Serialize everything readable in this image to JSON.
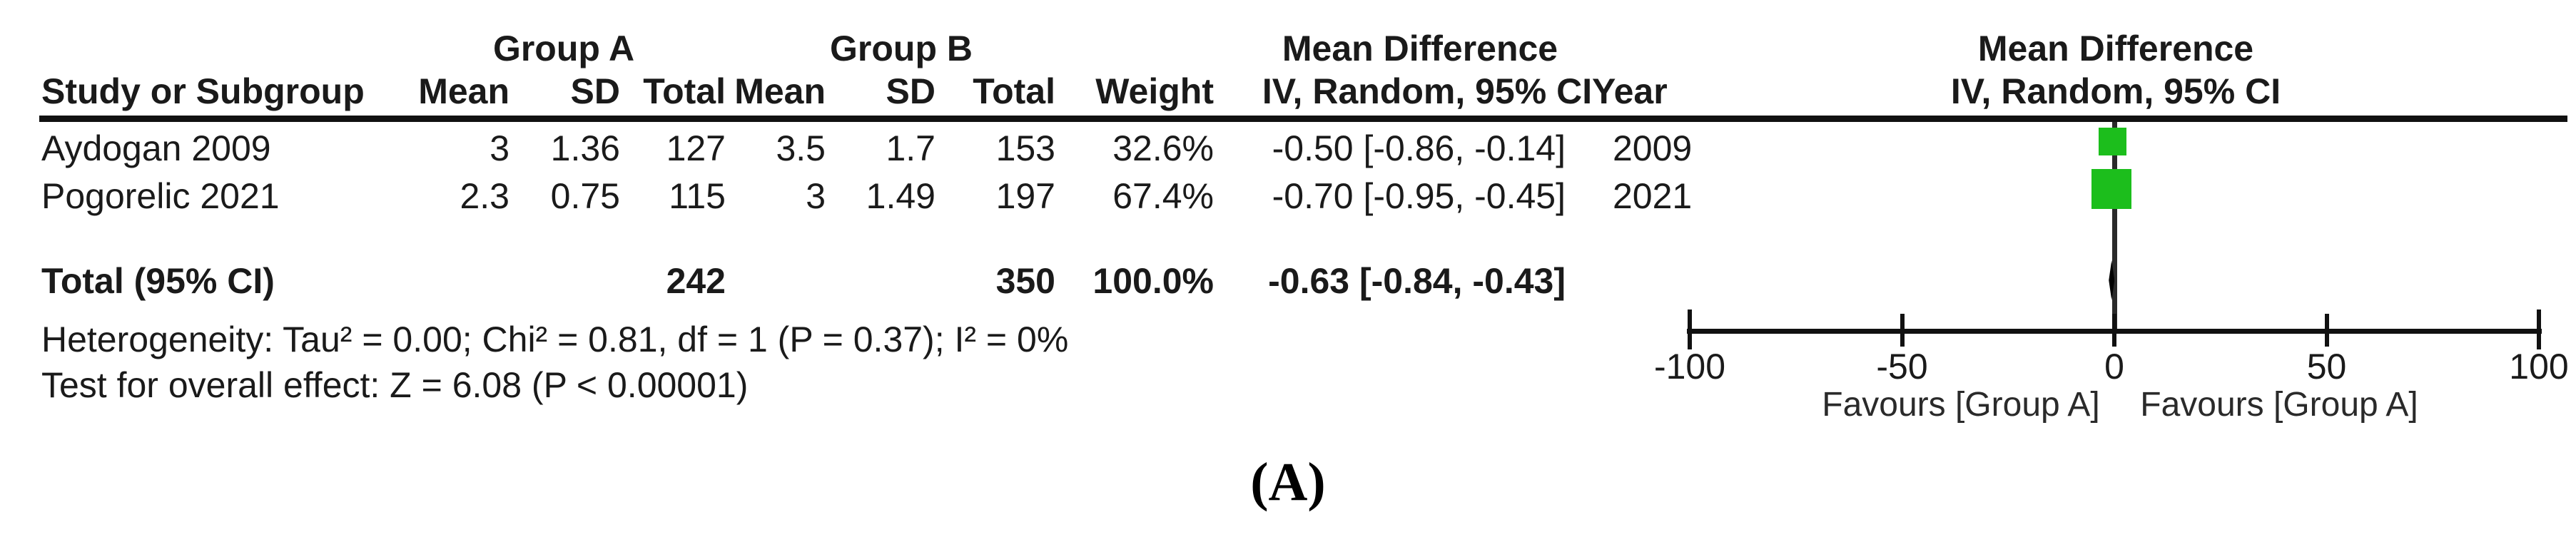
{
  "colors": {
    "marker_green": "#1cbe1c",
    "diamond_black": "#000000",
    "line_black": "#111111",
    "text": "#1a1a1a"
  },
  "table": {
    "headers": {
      "group_a": "Group A",
      "group_b": "Group B",
      "effect_line1": "Mean Difference",
      "effect_line2": "IV, Random, 95% CI",
      "study": "Study or Subgroup",
      "mean": "Mean",
      "sd": "SD",
      "total": "Total",
      "weight": "Weight",
      "year": "Year"
    },
    "rows": [
      {
        "study": "Aydogan 2009",
        "mean_a": "3",
        "sd_a": "1.36",
        "total_a": "127",
        "mean_b": "3.5",
        "sd_b": "1.7",
        "total_b": "153",
        "weight": "32.6%",
        "ci": "-0.50 [-0.86, -0.14]",
        "year": "2009"
      },
      {
        "study": "Pogorelic 2021",
        "mean_a": "2.3",
        "sd_a": "0.75",
        "total_a": "115",
        "mean_b": "3",
        "sd_b": "1.49",
        "total_b": "197",
        "weight": "67.4%",
        "ci": "-0.70 [-0.95, -0.45]",
        "year": "2021"
      }
    ],
    "total_row": {
      "label": "Total (95% CI)",
      "total_a": "242",
      "total_b": "350",
      "weight": "100.0%",
      "ci": "-0.63 [-0.84, -0.43]"
    },
    "heterogeneity": "Heterogeneity: Tau² = 0.00; Chi² = 0.81, df = 1 (P = 0.37); I² = 0%",
    "overall_effect": "Test for overall effect: Z = 6.08 (P < 0.00001)"
  },
  "plot": {
    "header_line1": "Mean Difference",
    "header_line2": "IV, Random, 95% CI",
    "tick_labels": [
      "-100",
      "-50",
      "0",
      "50",
      "100"
    ],
    "favours_left": "Favours [Group A]",
    "favours_right": "Favours [Group A]"
  },
  "caption": "(A)",
  "chart_data": {
    "type": "scatter",
    "subtype": "forest_plot",
    "title": "Mean Difference — IV, Random, 95% CI",
    "xlim": [
      -100,
      100
    ],
    "x_ticks": [
      -100,
      -50,
      0,
      50,
      100
    ],
    "grid": false,
    "studies": [
      {
        "name": "Aydogan 2009",
        "mean_a": 3,
        "sd_a": 1.36,
        "n_a": 127,
        "mean_b": 3.5,
        "sd_b": 1.7,
        "n_b": 153,
        "weight_pct": 32.6,
        "md": -0.5,
        "ci_low": -0.86,
        "ci_high": -0.14,
        "year": 2009
      },
      {
        "name": "Pogorelic 2021",
        "mean_a": 2.3,
        "sd_a": 0.75,
        "n_a": 115,
        "mean_b": 3,
        "sd_b": 1.49,
        "n_b": 197,
        "weight_pct": 67.4,
        "md": -0.7,
        "ci_low": -0.95,
        "ci_high": -0.45,
        "year": 2021
      }
    ],
    "total": {
      "label": "Total (95% CI)",
      "n_a": 242,
      "n_b": 350,
      "weight_pct": 100.0,
      "md": -0.63,
      "ci_low": -0.84,
      "ci_high": -0.43
    },
    "heterogeneity": {
      "tau2": 0.0,
      "chi2": 0.81,
      "df": 1,
      "p": 0.37,
      "i2_pct": 0
    },
    "overall_effect": {
      "z": 6.08,
      "p": "< 0.00001"
    },
    "favours_left_label": "Favours [Group A]",
    "favours_right_label": "Favours [Group A]",
    "marker_color": "#1cbe1c"
  }
}
